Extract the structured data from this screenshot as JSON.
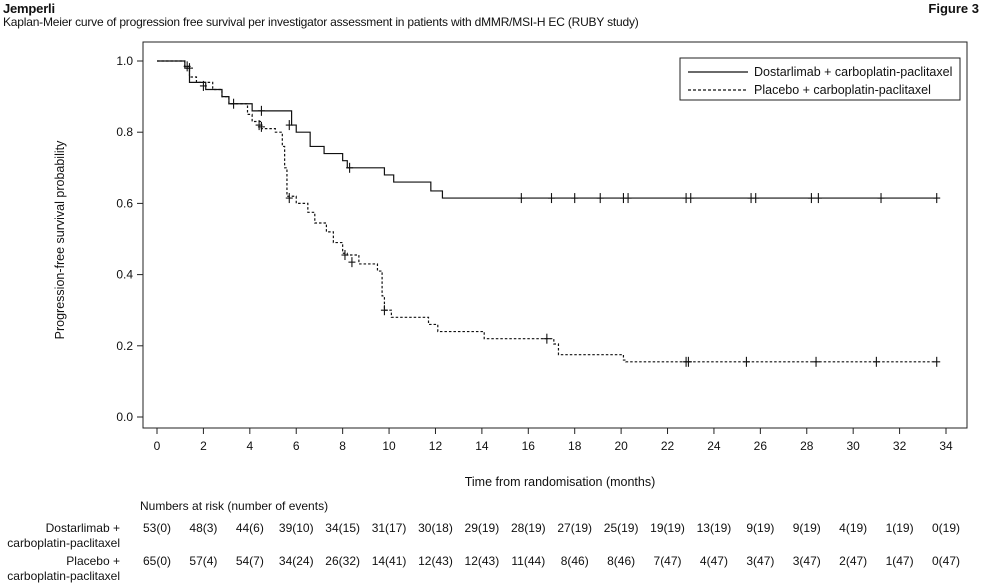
{
  "header": {
    "product": "Jemperli",
    "figure_label": "Figure 3",
    "title": "Kaplan-Meier curve of progression free survival per investigator assessment in patients with dMMR/MSI-H EC (RUBY study)"
  },
  "chart_data": {
    "type": "line",
    "title": "Kaplan-Meier curve of progression free survival per investigator assessment in patients with dMMR/MSI-H EC (RUBY study)",
    "xlabel": "Time from randomisation (months)",
    "ylabel": "Progression-free survival probability",
    "xlim": [
      0,
      34
    ],
    "ylim": [
      0,
      1
    ],
    "x_ticks": [
      0,
      2,
      4,
      6,
      8,
      10,
      12,
      14,
      16,
      18,
      20,
      22,
      24,
      26,
      28,
      30,
      32,
      34
    ],
    "y_ticks": [
      0.0,
      0.2,
      0.4,
      0.6,
      0.8,
      1.0
    ],
    "y_tick_labels": [
      "0.0",
      "0.2",
      "0.4",
      "0.6",
      "0.8",
      "1.0"
    ],
    "grid": false,
    "legend_position": "top-right",
    "series": [
      {
        "name": "Dostarlimab + carboplatin-paclitaxel",
        "style": "solid",
        "color": "#111111",
        "steps": [
          [
            0,
            1.0
          ],
          [
            1.2,
            0.98
          ],
          [
            1.4,
            0.94
          ],
          [
            2.1,
            0.92
          ],
          [
            2.8,
            0.9
          ],
          [
            3.1,
            0.88
          ],
          [
            4.1,
            0.86
          ],
          [
            5.8,
            0.82
          ],
          [
            6.0,
            0.8
          ],
          [
            6.6,
            0.76
          ],
          [
            7.2,
            0.74
          ],
          [
            8.0,
            0.72
          ],
          [
            8.2,
            0.7
          ],
          [
            9.8,
            0.68
          ],
          [
            10.2,
            0.66
          ],
          [
            11.8,
            0.635
          ],
          [
            12.3,
            0.615
          ],
          [
            33.6,
            0.615
          ]
        ],
        "censors": [
          [
            1.4,
            0.98
          ],
          [
            2.0,
            0.93
          ],
          [
            3.3,
            0.88
          ],
          [
            4.5,
            0.86
          ],
          [
            5.7,
            0.82
          ],
          [
            8.3,
            0.7
          ],
          [
            15.7,
            0.615
          ],
          [
            17.0,
            0.615
          ],
          [
            18.0,
            0.615
          ],
          [
            19.1,
            0.615
          ],
          [
            20.1,
            0.615
          ],
          [
            20.3,
            0.615
          ],
          [
            22.8,
            0.615
          ],
          [
            23.0,
            0.615
          ],
          [
            25.6,
            0.615
          ],
          [
            25.8,
            0.615
          ],
          [
            28.2,
            0.615
          ],
          [
            28.5,
            0.615
          ],
          [
            31.2,
            0.615
          ],
          [
            33.6,
            0.615
          ]
        ]
      },
      {
        "name": "Placebo + carboplatin-paclitaxel",
        "style": "dashed",
        "color": "#111111",
        "steps": [
          [
            0,
            1.0
          ],
          [
            1.2,
            0.985
          ],
          [
            1.4,
            0.955
          ],
          [
            1.7,
            0.94
          ],
          [
            2.4,
            0.92
          ],
          [
            2.8,
            0.9
          ],
          [
            3.1,
            0.88
          ],
          [
            3.9,
            0.85
          ],
          [
            4.1,
            0.83
          ],
          [
            4.5,
            0.81
          ],
          [
            5.1,
            0.8
          ],
          [
            5.4,
            0.76
          ],
          [
            5.5,
            0.7
          ],
          [
            5.6,
            0.62
          ],
          [
            6.0,
            0.6
          ],
          [
            6.5,
            0.575
          ],
          [
            6.8,
            0.545
          ],
          [
            7.3,
            0.52
          ],
          [
            7.6,
            0.49
          ],
          [
            8.0,
            0.46
          ],
          [
            8.2,
            0.455
          ],
          [
            8.7,
            0.43
          ],
          [
            9.5,
            0.41
          ],
          [
            9.7,
            0.34
          ],
          [
            9.8,
            0.3
          ],
          [
            10.1,
            0.28
          ],
          [
            11.7,
            0.26
          ],
          [
            12.1,
            0.24
          ],
          [
            14.1,
            0.22
          ],
          [
            17.1,
            0.205
          ],
          [
            17.3,
            0.175
          ],
          [
            20.1,
            0.16
          ],
          [
            20.2,
            0.155
          ],
          [
            33.6,
            0.155
          ]
        ],
        "censors": [
          [
            1.3,
            0.985
          ],
          [
            4.4,
            0.82
          ],
          [
            4.5,
            0.815
          ],
          [
            5.7,
            0.615
          ],
          [
            8.1,
            0.455
          ],
          [
            8.4,
            0.435
          ],
          [
            9.8,
            0.3
          ],
          [
            16.8,
            0.22
          ],
          [
            22.8,
            0.155
          ],
          [
            22.9,
            0.155
          ],
          [
            25.4,
            0.155
          ],
          [
            28.4,
            0.155
          ],
          [
            31.0,
            0.155
          ],
          [
            33.6,
            0.155
          ]
        ]
      }
    ],
    "risk_table": {
      "title": "Numbers at risk (number of events)",
      "rows": [
        {
          "label_line1": "Dostarlimab +",
          "label_line2": "carboplatin-paclitaxel",
          "values": [
            "53(0)",
            "48(3)",
            "44(6)",
            "39(10)",
            "34(15)",
            "31(17)",
            "30(18)",
            "29(19)",
            "28(19)",
            "27(19)",
            "25(19)",
            "19(19)",
            "13(19)",
            "9(19)",
            "9(19)",
            "4(19)",
            "1(19)",
            "0(19)"
          ]
        },
        {
          "label_line1": "Placebo +",
          "label_line2": "carboplatin-paclitaxel",
          "values": [
            "65(0)",
            "57(4)",
            "54(7)",
            "34(24)",
            "26(32)",
            "14(41)",
            "12(43)",
            "12(43)",
            "11(44)",
            "8(46)",
            "8(46)",
            "7(47)",
            "4(47)",
            "3(47)",
            "3(47)",
            "2(47)",
            "1(47)",
            "0(47)"
          ]
        }
      ]
    }
  }
}
